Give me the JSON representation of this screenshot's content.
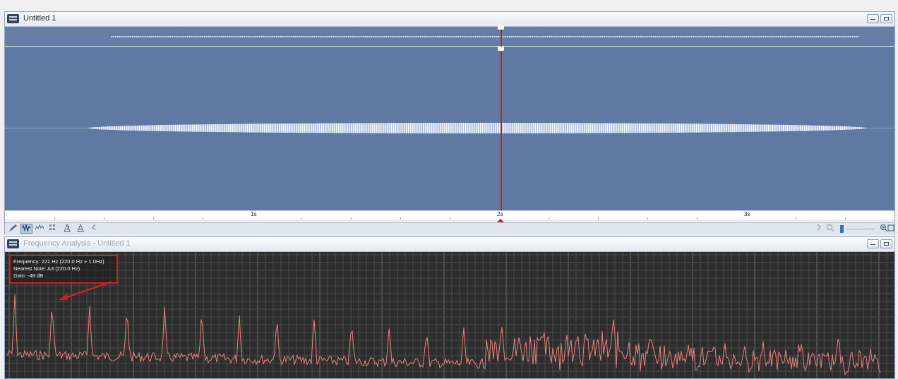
{
  "editor_window": {
    "title": "Untitled 1",
    "timeline_labels": [
      "1s",
      "2s",
      "3s"
    ]
  },
  "toolbar": {
    "icons": [
      "pencil-icon",
      "waveform-view-icon",
      "spectral-view-icon",
      "binary-view-icon",
      "metronome-icon",
      "stretch-icon",
      "chevron-left-icon"
    ],
    "zoom_icons": [
      "chevron-right-icon",
      "zoom-out-icon",
      "zoom-in-icon",
      "zoom-fit-icon"
    ]
  },
  "frequency_window": {
    "title": "Frequency Analysis - Untitled 1",
    "info": {
      "frequency": "Frequency: 221 Hz (220.0 Hz + 1.0Hz)",
      "nearest_note": "Nearest Note: A3 (220.0 Hz)",
      "gain": "Gain: -48 dB"
    }
  },
  "colors": {
    "waveform_bg": "#5f79a2",
    "cursor": "#c4202a",
    "spectrum_line": "#e9837e",
    "spectrum_bg": "#2d2d2d",
    "annotation": "#d41e1e"
  }
}
